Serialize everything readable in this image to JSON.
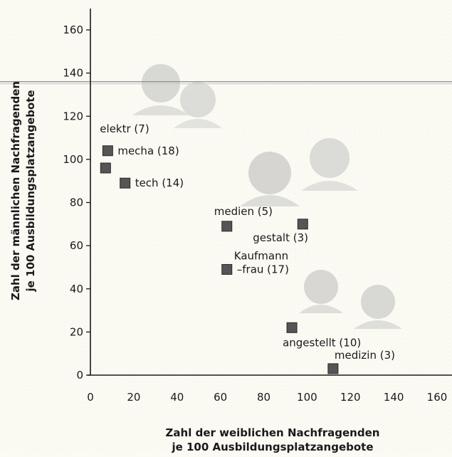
{
  "chart_data": {
    "type": "scatter",
    "xlabel": [
      "Zahl der weiblichen Nachfragenden",
      "je 100 Ausbildungsplatzangebote"
    ],
    "ylabel": [
      "Zahl der männlichen Nachfragenden",
      "je 100 Ausbildungsplatzangebote"
    ],
    "xlim": [
      0,
      160
    ],
    "ylim": [
      0,
      160
    ],
    "xticks": [
      0,
      20,
      40,
      60,
      80,
      100,
      120,
      140,
      160
    ],
    "yticks": [
      0,
      20,
      40,
      60,
      80,
      100,
      120,
      140,
      160
    ],
    "grid": false,
    "reference_line_y": 136,
    "marker_color": "#555555",
    "points": [
      {
        "x": 8,
        "y": 104,
        "label": [
          "mecha (18)"
        ],
        "anchor": "right"
      },
      {
        "x": 7,
        "y": 96,
        "label": [
          "elektr (7)"
        ],
        "anchor": "above-far"
      },
      {
        "x": 16,
        "y": 89,
        "label": [
          "tech (14)"
        ],
        "anchor": "right"
      },
      {
        "x": 63,
        "y": 69,
        "label": [
          "medien (5)"
        ],
        "anchor": "above"
      },
      {
        "x": 98,
        "y": 70,
        "label": [
          "gestalt (3)"
        ],
        "anchor": "below-left"
      },
      {
        "x": 63,
        "y": 49,
        "label": [
          "Kaufmann",
          "–frau (17)"
        ],
        "anchor": "right-stack"
      },
      {
        "x": 93,
        "y": 22,
        "label": [
          "angestellt (10)"
        ],
        "anchor": "below"
      },
      {
        "x": 112,
        "y": 3,
        "label": [
          "medizin (3)"
        ],
        "anchor": "above-right"
      }
    ]
  }
}
